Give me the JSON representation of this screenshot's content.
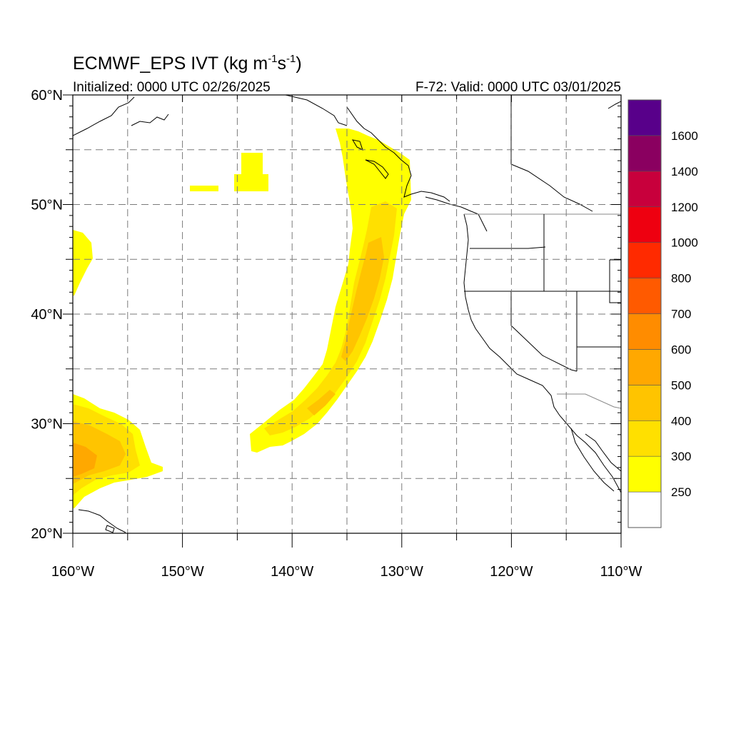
{
  "figure": {
    "title_main": "ECMWF_EPS IVT (kg m",
    "title_sup1": "-1",
    "title_mid": "s",
    "title_sup2": "-1",
    "title_end": ")",
    "init_label": "Initialized: 0000 UTC 02/26/2025",
    "valid_label": "F-72: Valid: 0000 UTC 03/01/2025"
  },
  "map": {
    "lon_range": [
      -160,
      -110
    ],
    "lat_range": [
      20,
      60
    ],
    "lon_ticks": [
      {
        "value": -160,
        "label": "160°W"
      },
      {
        "value": -150,
        "label": "150°W"
      },
      {
        "value": -140,
        "label": "140°W"
      },
      {
        "value": -130,
        "label": "130°W"
      },
      {
        "value": -120,
        "label": "120°W"
      },
      {
        "value": -110,
        "label": "110°W"
      }
    ],
    "lat_ticks": [
      {
        "value": 60,
        "label": "60°N"
      },
      {
        "value": 50,
        "label": "50°N"
      },
      {
        "value": 40,
        "label": "40°N"
      },
      {
        "value": 30,
        "label": "30°N"
      },
      {
        "value": 20,
        "label": "20°N"
      }
    ],
    "grid_lons": [
      -155,
      -150,
      -145,
      -140,
      -135,
      -130,
      -125,
      -120,
      -115
    ],
    "grid_lats": [
      25,
      30,
      35,
      40,
      45,
      50,
      55
    ]
  },
  "colorbar": {
    "levels": [
      "250",
      "300",
      "400",
      "500",
      "600",
      "700",
      "800",
      "1000",
      "1200",
      "1400",
      "1600"
    ],
    "colors": [
      "#ffffff",
      "#ffff00",
      "#ffe000",
      "#ffc400",
      "#ffa800",
      "#ff8c00",
      "#ff5a00",
      "#ff2a00",
      "#ee0010",
      "#c8003c",
      "#8a0060",
      "#58008a"
    ]
  },
  "chart_data": {
    "type": "heatmap",
    "regions": [
      {
        "name_hint": "atmospheric river",
        "lon_range": [
          -144,
          -129
        ],
        "lat_range": [
          27,
          57
        ],
        "max_ivt_bin": "400-500"
      },
      {
        "name_hint": "southwest plume",
        "lon_range": [
          -160,
          -152
        ],
        "lat_range": [
          22,
          32
        ],
        "max_ivt_bin": "500-600"
      }
    ]
  }
}
